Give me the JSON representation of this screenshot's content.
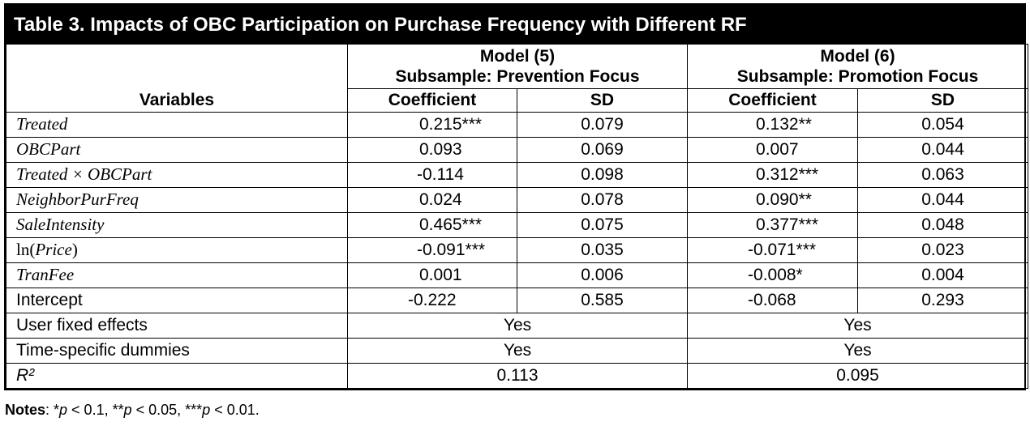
{
  "title": "Table 3.  Impacts of OBC Participation on Purchase Frequency with Different RF",
  "header": {
    "variables": "Variables",
    "model5_line1": "Model (5)",
    "model5_line2": "Subsample:  Prevention Focus",
    "model6_line1": "Model (6)",
    "model6_line2": "Subsample:  Promotion Focus",
    "coef": "Coefficient",
    "sd": "SD"
  },
  "rows": [
    {
      "var": "Treated",
      "m5c": "0.215***",
      "m5s": "0.079",
      "m6c": "0.132**",
      "m6s": "0.054"
    },
    {
      "var": "OBCPart",
      "m5c": "0.093",
      "m5s": "0.069",
      "m6c": "0.007",
      "m6s": "0.044"
    },
    {
      "var": "Treated × OBCPart",
      "m5c": "-0.114",
      "m5s": "0.098",
      "m6c": "0.312***",
      "m6s": "0.063"
    },
    {
      "var": "NeighborPurFreq",
      "m5c": "0.024",
      "m5s": "0.078",
      "m6c": "0.090**",
      "m6s": "0.044"
    },
    {
      "var": "SaleIntensity",
      "m5c": "0.465***",
      "m5s": "0.075",
      "m6c": "0.377***",
      "m6s": "0.048"
    },
    {
      "var_prefix": "ln(",
      "var_it": "Price",
      "var_suffix": ")",
      "m5c": "-0.091***",
      "m5s": "0.035",
      "m6c": "-0.071***",
      "m6s": "0.023"
    },
    {
      "var": "TranFee",
      "m5c": "0.001",
      "m5s": "0.006",
      "m6c": "-0.008*",
      "m6s": "0.004"
    },
    {
      "var": "Intercept",
      "m5c": "-0.222",
      "m5s": "0.585",
      "m6c": "-0.068",
      "m6s": "0.293"
    }
  ],
  "merged_rows": [
    {
      "var": "User fixed effects",
      "m5": "Yes",
      "m6": "Yes"
    },
    {
      "var": "Time-specific dummies",
      "m5": "Yes",
      "m6": "Yes"
    },
    {
      "var": "R²",
      "m5": "0.113",
      "m6": "0.095"
    }
  ],
  "notes": {
    "label": "Notes",
    "text_a": ":  *",
    "p1": "p",
    "text_b": " < 0.1, **",
    "p2": "p",
    "text_c": " < 0.05, ***",
    "p3": "p",
    "text_d": " < 0.01."
  }
}
